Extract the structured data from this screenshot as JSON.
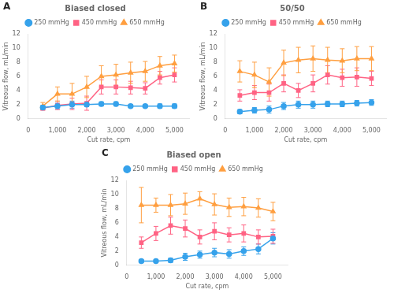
{
  "chart_data": [
    {
      "type": "line",
      "title": "Biased closed",
      "annotations": [
        "A"
      ],
      "xlabel": "Cut rate, cpm",
      "ylabel": "Vitreous flow, mL/min",
      "x": [
        500,
        1000,
        1500,
        2000,
        2500,
        3000,
        3500,
        4000,
        4500,
        5000
      ],
      "xlim": [
        0,
        5500
      ],
      "xticks": [
        0,
        {
          "value": 1000,
          "label": "1,000"
        },
        {
          "value": 2000,
          "label": "2,000"
        },
        {
          "value": 3000,
          "label": "3,000"
        },
        {
          "value": 4000,
          "label": "4,000"
        },
        {
          "value": 5000,
          "label": "5,000"
        }
      ],
      "ylim": [
        0,
        12
      ],
      "yticks": [
        0,
        2,
        4,
        6,
        8,
        10,
        12
      ],
      "grid": false,
      "legend": "top",
      "series": [
        {
          "name": "250 mmHg",
          "marker": "circle",
          "line_style": "solid",
          "values": [
            1.6,
            1.8,
            2.0,
            2.0,
            2.1,
            2.1,
            1.8,
            1.8,
            1.8,
            1.8
          ],
          "errors": [
            0.3,
            0.4,
            0.5,
            0.3,
            0.3,
            0.3,
            0.2,
            0.2,
            0.3,
            0.3
          ]
        },
        {
          "name": "450 mmHg",
          "marker": "square",
          "line_style": "solid",
          "values": [
            1.5,
            1.9,
            2.1,
            2.2,
            4.5,
            4.5,
            4.4,
            4.3,
            5.8,
            6.2
          ],
          "errors": [
            0.3,
            0.6,
            0.8,
            1.0,
            1.0,
            1.0,
            0.9,
            0.8,
            0.9,
            1.0
          ]
        },
        {
          "name": "650 mmHg",
          "marker": "triangle",
          "line_style": "solid",
          "values": [
            1.8,
            3.5,
            3.5,
            4.5,
            6.0,
            6.2,
            6.5,
            6.7,
            7.5,
            7.8
          ],
          "errors": [
            0.5,
            1.0,
            1.5,
            1.5,
            1.5,
            1.5,
            1.5,
            1.4,
            1.3,
            1.2
          ]
        }
      ]
    },
    {
      "type": "line",
      "title": "50/50",
      "annotations": [
        "B"
      ],
      "xlabel": "Cut rate, cpm",
      "ylabel": "Vitreous flow, mL/min",
      "x": [
        500,
        1000,
        1500,
        2000,
        2500,
        3000,
        3500,
        4000,
        4500,
        5000
      ],
      "xlim": [
        0,
        5500
      ],
      "xticks": [
        0,
        {
          "value": 1000,
          "label": "1,000"
        },
        {
          "value": 2000,
          "label": "2,000"
        },
        {
          "value": 3000,
          "label": "3,000"
        },
        {
          "value": 4000,
          "label": "4,000"
        },
        {
          "value": 5000,
          "label": "5,000"
        }
      ],
      "ylim": [
        0,
        12
      ],
      "yticks": [
        0,
        2,
        4,
        6,
        8,
        10,
        12
      ],
      "grid": false,
      "legend": "top",
      "series": [
        {
          "name": "250 mmHg",
          "marker": "circle",
          "line_style": "solid",
          "values": [
            1.0,
            1.2,
            1.3,
            1.8,
            2.0,
            2.0,
            2.1,
            2.1,
            2.2,
            2.3
          ],
          "errors": [
            0.3,
            0.4,
            0.5,
            0.5,
            0.5,
            0.5,
            0.4,
            0.4,
            0.4,
            0.4
          ]
        },
        {
          "name": "450 mmHg",
          "marker": "square",
          "line_style": "solid",
          "values": [
            3.3,
            3.7,
            3.7,
            5.0,
            4.0,
            5.0,
            6.2,
            5.8,
            5.9,
            5.7
          ],
          "errors": [
            0.8,
            1.0,
            1.2,
            1.2,
            1.0,
            1.2,
            1.3,
            1.2,
            1.3,
            1.0
          ]
        },
        {
          "name": "650 mmHg",
          "marker": "triangle",
          "line_style": "solid",
          "values": [
            6.7,
            6.2,
            5.2,
            7.9,
            8.3,
            8.5,
            8.3,
            8.2,
            8.5,
            8.5
          ],
          "errors": [
            1.5,
            1.8,
            2.0,
            1.8,
            1.8,
            1.8,
            1.8,
            1.7,
            1.7,
            1.7
          ]
        }
      ]
    },
    {
      "type": "line",
      "title": "Biased open",
      "annotations": [
        "C"
      ],
      "xlabel": "Cut rate, cpm",
      "ylabel": "Vitreous flow, mL/min",
      "x": [
        500,
        1000,
        1500,
        2000,
        2500,
        3000,
        3500,
        4000,
        4500,
        5000
      ],
      "xlim": [
        0,
        5500
      ],
      "xticks": [
        0,
        {
          "value": 1000,
          "label": "1,000"
        },
        {
          "value": 2000,
          "label": "2,000"
        },
        {
          "value": 3000,
          "label": "3,000"
        },
        {
          "value": 4000,
          "label": "4,000"
        },
        {
          "value": 5000,
          "label": "5,000"
        }
      ],
      "ylim": [
        0,
        12
      ],
      "yticks": [
        0,
        2,
        4,
        6,
        8,
        10,
        12
      ],
      "grid": false,
      "legend": "top",
      "series": [
        {
          "name": "250 mmHg",
          "marker": "circle",
          "line_style": "solid",
          "values": [
            0.6,
            0.6,
            0.7,
            1.2,
            1.5,
            1.8,
            1.6,
            2.0,
            2.3,
            3.8
          ],
          "errors": [
            0.2,
            0.2,
            0.3,
            0.5,
            0.5,
            0.6,
            0.6,
            0.6,
            0.7,
            0.8
          ]
        },
        {
          "name": "450 mmHg",
          "marker": "square",
          "line_style": "solid",
          "values": [
            3.2,
            4.5,
            5.6,
            5.2,
            4.0,
            4.8,
            4.3,
            4.5,
            4.0,
            4.1
          ],
          "errors": [
            0.8,
            1.0,
            1.2,
            1.2,
            1.0,
            1.2,
            1.0,
            1.2,
            1.0,
            1.0
          ]
        },
        {
          "name": "650 mmHg",
          "marker": "triangle",
          "line_style": "solid",
          "values": [
            8.5,
            8.5,
            8.5,
            8.7,
            9.4,
            8.6,
            8.2,
            8.3,
            8.1,
            7.6
          ],
          "errors": [
            2.5,
            1.0,
            1.5,
            1.5,
            1.0,
            1.5,
            1.3,
            1.3,
            1.3,
            1.3
          ]
        }
      ]
    }
  ]
}
